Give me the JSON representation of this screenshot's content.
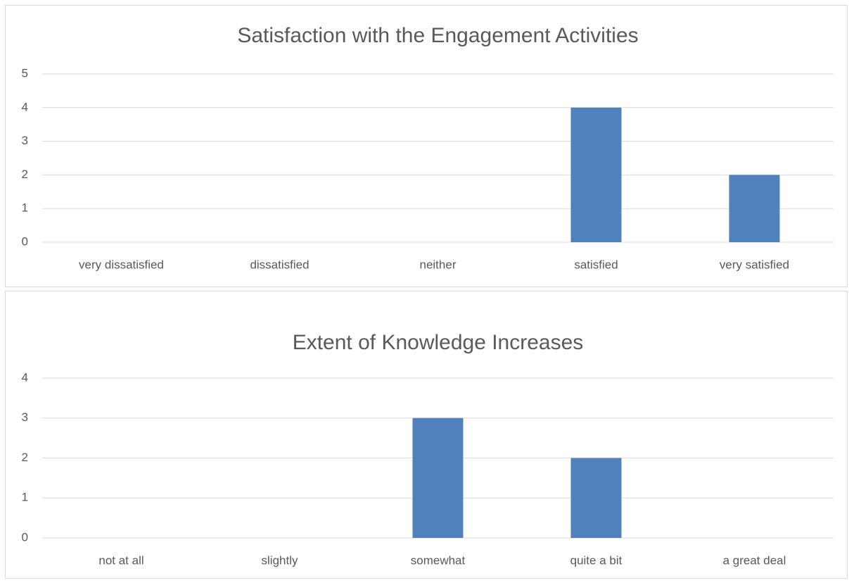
{
  "chart_data": [
    {
      "type": "bar",
      "title": "Satisfaction with the Engagement Activities",
      "categories": [
        "very dissatisfied",
        "dissatisfied",
        "neither",
        "satisfied",
        "very satisfied"
      ],
      "values": [
        0,
        0,
        0,
        4,
        2
      ],
      "color": "#4f81bd",
      "ylim": [
        0,
        5
      ],
      "yticks": [
        0,
        1,
        2,
        3,
        4,
        5
      ],
      "grid": true
    },
    {
      "type": "bar",
      "title": "Extent of Knowledge Increases",
      "categories": [
        "not at all",
        "slightly",
        "somewhat",
        "quite a bit",
        "a great deal"
      ],
      "values": [
        0,
        0,
        3,
        2,
        0
      ],
      "color": "#4f81bd",
      "ylim": [
        0,
        4
      ],
      "yticks": [
        0,
        1,
        2,
        3,
        4
      ],
      "grid": true
    }
  ]
}
